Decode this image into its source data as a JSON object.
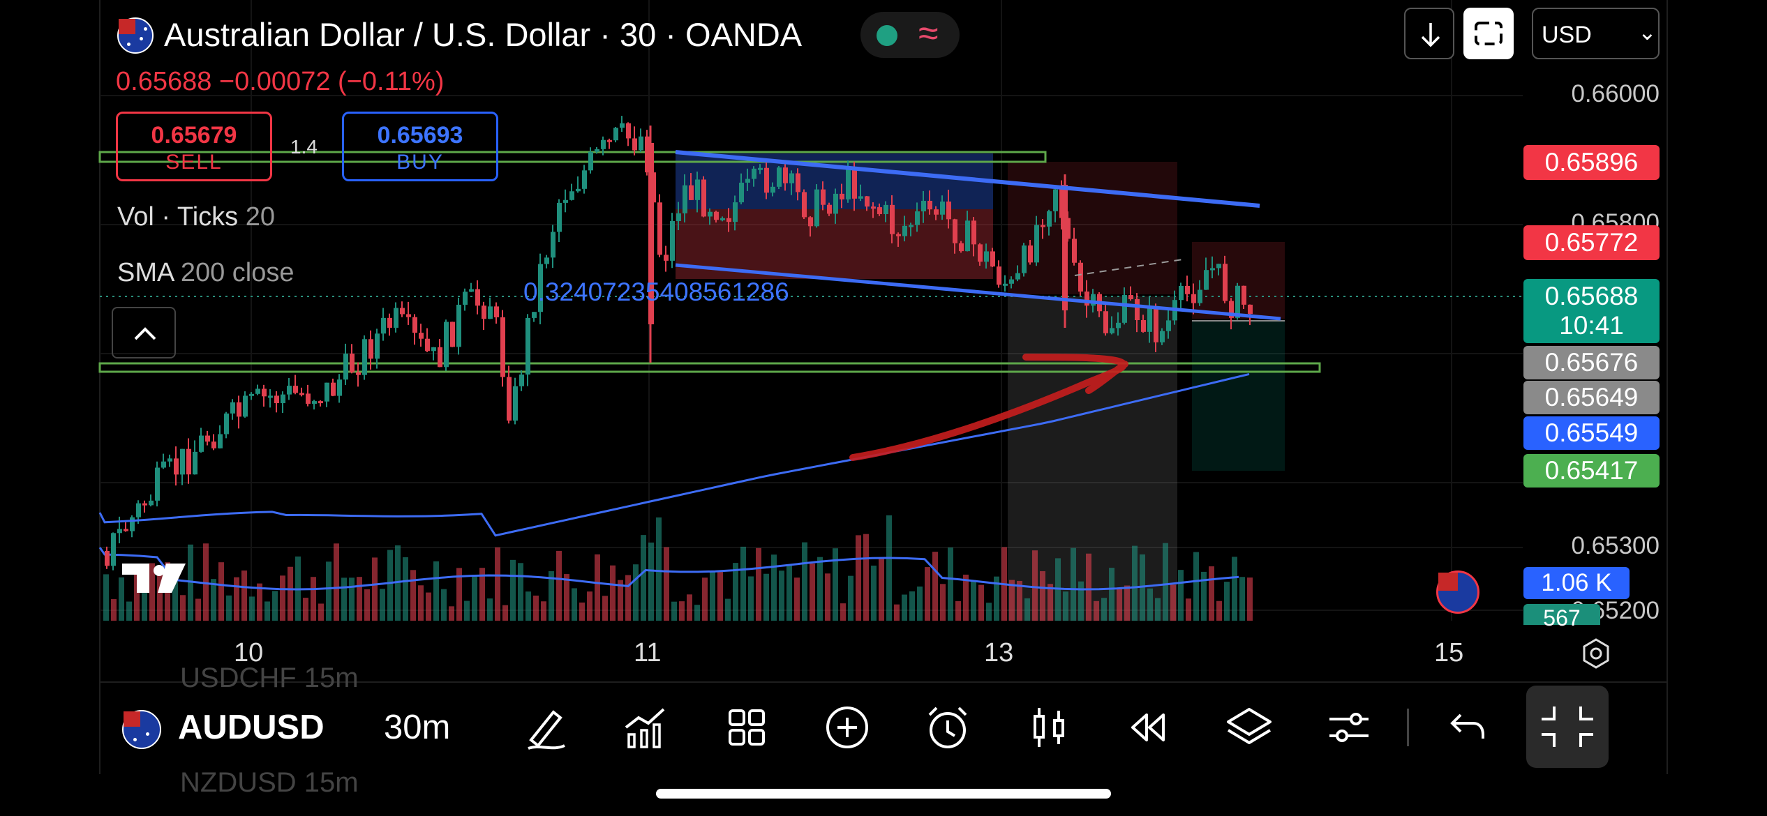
{
  "header": {
    "title": "Australian Dollar / U.S. Dollar · 30 · OANDA",
    "change": "0.65688  −0.00072 (−0.11%)",
    "sell_price": "0.65679",
    "sell_label": "SELL",
    "buy_price": "0.65693",
    "buy_label": "BUY",
    "spread": "1.4"
  },
  "indicators": {
    "vol_name": "Vol · Ticks",
    "vol_value": "20",
    "sma_name": "SMA",
    "sma_value": "200 close"
  },
  "chart": {
    "measure_text": "0.324072354085612​86"
  },
  "top_controls": {
    "currency": "USD",
    "currency_chevron": "⌄"
  },
  "price_axis": {
    "ticks": [
      "0.66000",
      "0.65800",
      "0.65300",
      "0.65200"
    ],
    "badges": [
      {
        "text": "0.65896",
        "bg": "#f23645"
      },
      {
        "text": "0.65772",
        "bg": "#f23645"
      },
      {
        "text": "0.65688",
        "bg": "#089981"
      },
      {
        "text": "0.65676",
        "bg": "#8a8a8a"
      },
      {
        "text": "0.65649",
        "bg": "#8a8a8a"
      },
      {
        "text": "0.65549",
        "bg": "#2962ff"
      },
      {
        "text": "0.65417",
        "bg": "#4caf50"
      }
    ],
    "countdown": "10:41",
    "volume_badge": "1.06 K",
    "volume_badge2": "567"
  },
  "time_axis": {
    "labels": [
      "10",
      "11",
      "13",
      "15"
    ]
  },
  "bottom_bar": {
    "symbol": "AUDUSD",
    "timeframe": "30m",
    "ghost_symbol_top": "USDCHF  15m",
    "ghost_symbol_bottom": "NZDUSD  15m"
  },
  "colors": {
    "up": "#1f8f7d",
    "down": "#e0404f",
    "channel": "#3d6cf5",
    "sma": "#3d6cf5",
    "support": "#5ea84a",
    "annotation": "#c81e1e"
  },
  "chart_data": {
    "type": "candlestick",
    "symbol": "Australian Dollar / U.S. Dollar",
    "interval": "30",
    "exchange": "OANDA",
    "last": 0.65688,
    "change": -0.00072,
    "change_pct": -0.11,
    "sell": 0.65679,
    "buy": 0.65693,
    "y_ticks": [
      0.66,
      0.658,
      0.653,
      0.652
    ],
    "x_labels": [
      "10",
      "11",
      "13",
      "15"
    ],
    "series": [
      {
        "name": "Vol · Ticks",
        "last": "1.06 K"
      },
      {
        "name": "SMA 200 close",
        "last": 0.65549
      }
    ],
    "levels": {
      "stop": 0.65896,
      "target_short": 0.65772,
      "current": 0.65688,
      "line_a": 0.65676,
      "line_b": 0.65649,
      "sma": 0.65549,
      "target": 0.65417
    }
  }
}
